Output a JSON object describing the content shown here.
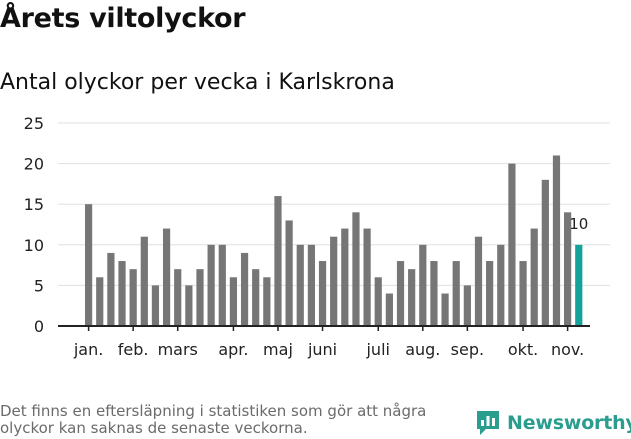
{
  "header": {
    "title": "Årets viltolyckor",
    "subtitle": "Antal olyckor per vecka i Karlskrona"
  },
  "footer": {
    "note": "Det finns en eftersläpning i statistiken som gör att några olyckor kan saknas de senaste veckorna.",
    "brand": "Newsworthy"
  },
  "colors": {
    "bar": "#767676",
    "highlight": "#14a39a",
    "grid": "#e0e0e0",
    "axis": "#222222",
    "brand": "#2a9d8f"
  },
  "icons": {
    "brand_logo": "bar-chart-speech-bubble-icon"
  },
  "chart_data": {
    "type": "bar",
    "title": "Antal olyckor per vecka i Karlskrona",
    "xlabel": "",
    "ylabel": "",
    "ylim": [
      0,
      25
    ],
    "yticks": [
      0,
      5,
      10,
      15,
      20,
      25
    ],
    "grid": true,
    "legend": "none",
    "weeks": [
      1,
      2,
      3,
      4,
      5,
      6,
      7,
      8,
      9,
      10,
      11,
      12,
      13,
      14,
      15,
      16,
      17,
      18,
      19,
      20,
      21,
      22,
      23,
      24,
      25,
      26,
      27,
      28,
      29,
      30,
      31,
      32,
      33,
      34,
      35,
      36,
      37,
      38,
      39,
      40,
      41,
      42,
      43,
      44,
      45
    ],
    "values": [
      15,
      6,
      9,
      8,
      7,
      11,
      5,
      12,
      7,
      5,
      7,
      10,
      10,
      6,
      9,
      7,
      6,
      16,
      13,
      10,
      10,
      8,
      11,
      12,
      14,
      12,
      6,
      4,
      8,
      7,
      10,
      8,
      4,
      8,
      5,
      11,
      8,
      10,
      20,
      8,
      12,
      18,
      21,
      14,
      10
    ],
    "highlight_index": 44,
    "data_labels": [
      {
        "index": 44,
        "text": "10"
      }
    ],
    "month_labels": [
      {
        "label": "jan.",
        "week": 1
      },
      {
        "label": "feb.",
        "week": 5
      },
      {
        "label": "mars",
        "week": 9
      },
      {
        "label": "apr.",
        "week": 14
      },
      {
        "label": "maj",
        "week": 18
      },
      {
        "label": "juni",
        "week": 22
      },
      {
        "label": "juli",
        "week": 27
      },
      {
        "label": "aug.",
        "week": 31
      },
      {
        "label": "sep.",
        "week": 35
      },
      {
        "label": "okt.",
        "week": 40
      },
      {
        "label": "nov.",
        "week": 44
      }
    ]
  }
}
